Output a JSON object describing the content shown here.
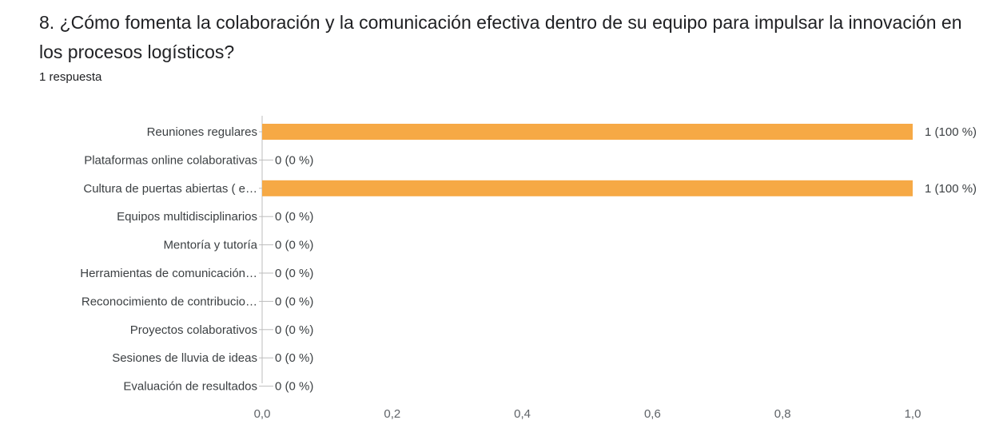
{
  "question": {
    "title": "8. ¿Cómo fomenta la colaboración y la comunicación efectiva dentro de su equipo para impulsar la innovación en los procesos logísticos?",
    "response_count": "1 respuesta"
  },
  "colors": {
    "bar": "#f6a945",
    "axis": "#bdbdbd",
    "text": "#3c4043",
    "tick_text": "#5f6368"
  },
  "chart_data": {
    "type": "bar",
    "orientation": "horizontal",
    "categories": [
      "Reuniones regulares",
      "Plataformas online colaborativas",
      "Cultura de puertas abiertas ( e…",
      "Equipos multidisciplinarios",
      "Mentoría y tutoría",
      "Herramientas de comunicación…",
      "Reconocimiento de contribucio…",
      "Proyectos colaborativos",
      "Sesiones de lluvia de ideas",
      "Evaluación de resultados"
    ],
    "values": [
      1,
      0,
      1,
      0,
      0,
      0,
      0,
      0,
      0,
      0
    ],
    "data_labels": [
      "1 (100 %)",
      "0 (0 %)",
      "1 (100 %)",
      "0 (0 %)",
      "0 (0 %)",
      "0 (0 %)",
      "0 (0 %)",
      "0 (0 %)",
      "0 (0 %)",
      "0 (0 %)"
    ],
    "xlim": [
      0,
      1
    ],
    "xticks": [
      "0,0",
      "0,2",
      "0,4",
      "0,6",
      "0,8",
      "1,0"
    ],
    "grid": false,
    "legend": "none"
  }
}
